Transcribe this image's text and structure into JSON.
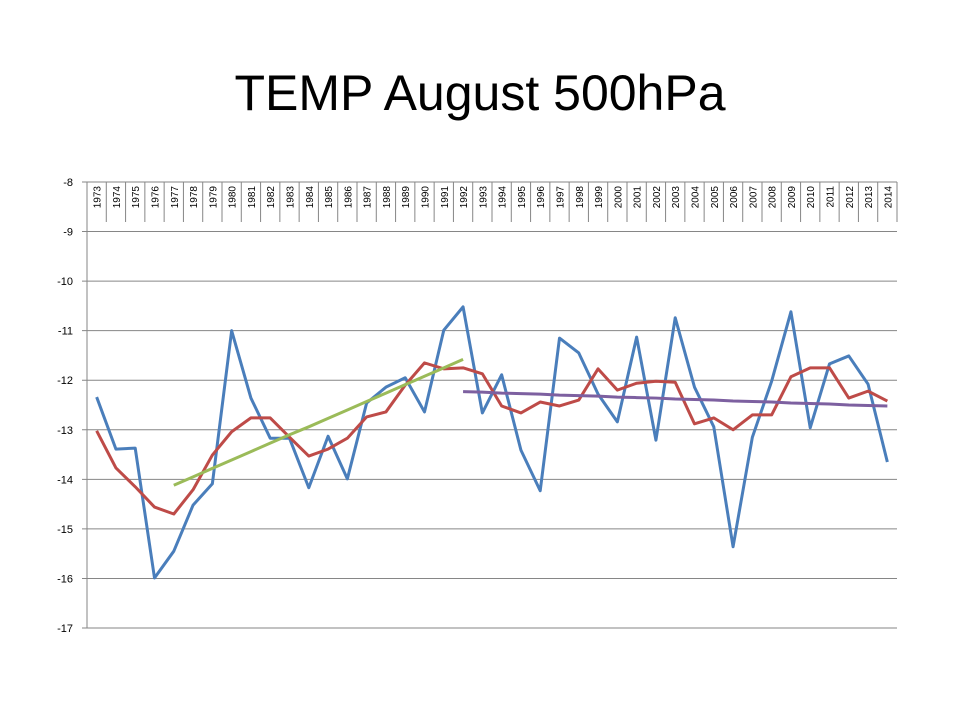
{
  "chart_data": {
    "type": "line",
    "title": "TEMP August 500hPa",
    "categories": [
      "1973",
      "1974",
      "1975",
      "1976",
      "1977",
      "1978",
      "1979",
      "1980",
      "1981",
      "1982",
      "1983",
      "1984",
      "1985",
      "1986",
      "1987",
      "1988",
      "1989",
      "1990",
      "1991",
      "1992",
      "1993",
      "1994",
      "1995",
      "1996",
      "1997",
      "1998",
      "1999",
      "2000",
      "2001",
      "2002",
      "2003",
      "2004",
      "2005",
      "2006",
      "2007",
      "2008",
      "2009",
      "2010",
      "2011",
      "2012",
      "2013",
      "2014"
    ],
    "series": [
      {
        "color": "#4a7ebb",
        "values": [
          -12.34,
          -13.39,
          -13.37,
          -15.99,
          -15.45,
          -14.52,
          -14.09,
          -11.0,
          -12.36,
          -13.17,
          -13.17,
          -14.17,
          -13.13,
          -13.99,
          -12.46,
          -12.14,
          -11.95,
          -12.64,
          -10.99,
          -10.52,
          -12.66,
          -11.89,
          -13.41,
          -14.23,
          -11.15,
          -11.45,
          -12.28,
          -12.84,
          -11.13,
          -13.21,
          -10.74,
          -12.14,
          -12.94,
          -15.36,
          -13.15,
          -12.02,
          -10.62,
          -12.96,
          -11.67,
          -11.51,
          -12.08,
          -13.65
        ]
      },
      {
        "color": "#be4b48",
        "values": [
          -13.02,
          -13.77,
          -14.15,
          -14.56,
          -14.7,
          -14.21,
          -13.51,
          -13.04,
          -12.76,
          -12.76,
          -13.15,
          -13.53,
          -13.39,
          -13.17,
          -12.74,
          -12.64,
          -12.1,
          -11.65,
          -11.77,
          -11.75,
          -11.87,
          -12.52,
          -12.66,
          -12.44,
          -12.52,
          -12.4,
          -11.77,
          -12.2,
          -12.06,
          -12.02,
          -12.04,
          -12.88,
          -12.76,
          -13.0,
          -12.7,
          -12.7,
          -11.93,
          -11.75,
          -11.75,
          -12.36,
          -12.22,
          -12.42
        ]
      },
      {
        "color": "#9bbb59",
        "values": [
          null,
          null,
          null,
          null,
          -14.12,
          -13.95,
          -13.78,
          -13.61,
          -13.44,
          -13.27,
          -13.1,
          -12.94,
          -12.77,
          -12.6,
          -12.43,
          -12.26,
          -12.09,
          -11.92,
          -11.75,
          -11.58,
          null,
          null,
          null,
          null,
          null,
          null,
          null,
          null,
          null,
          null,
          null,
          null,
          null,
          null,
          null,
          null,
          null,
          null,
          null,
          null,
          null,
          null
        ]
      },
      {
        "color": "#7d60a0",
        "values": [
          null,
          null,
          null,
          null,
          null,
          null,
          null,
          null,
          null,
          null,
          null,
          null,
          null,
          null,
          null,
          null,
          null,
          null,
          null,
          -12.23,
          -12.24,
          -12.26,
          -12.27,
          -12.28,
          -12.3,
          -12.31,
          -12.32,
          -12.34,
          -12.35,
          -12.36,
          -12.38,
          -12.39,
          -12.4,
          -12.42,
          -12.43,
          -12.44,
          -12.46,
          -12.47,
          -12.48,
          -12.5,
          -12.51,
          -12.52
        ]
      }
    ],
    "ylim": [
      -17,
      -8
    ],
    "yticks": [
      -8,
      -9,
      -10,
      -11,
      -12,
      -13,
      -14,
      -15,
      -16,
      -17
    ],
    "grid": true
  }
}
